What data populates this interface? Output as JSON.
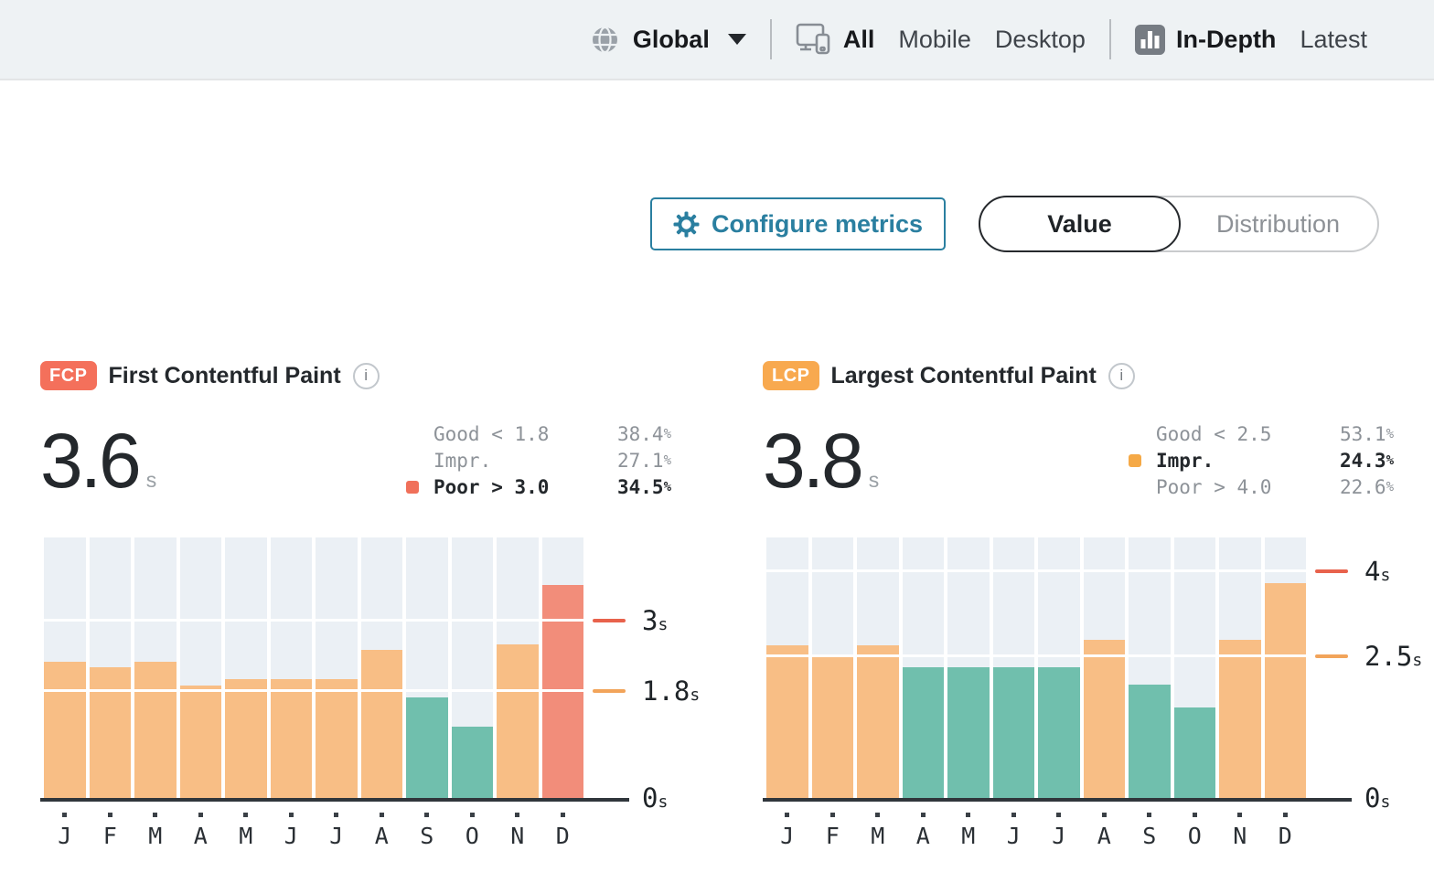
{
  "top_nav": {
    "region": {
      "label": "Global"
    },
    "device_tabs": [
      {
        "label": "All",
        "active": true
      },
      {
        "label": "Mobile",
        "active": false
      },
      {
        "label": "Desktop",
        "active": false
      }
    ],
    "view_tabs": [
      {
        "label": "In-Depth",
        "active": true
      },
      {
        "label": "Latest",
        "active": false
      }
    ]
  },
  "controls": {
    "configure_label": "Configure metrics",
    "toggle": [
      {
        "label": "Value",
        "active": true
      },
      {
        "label": "Distribution",
        "active": false
      }
    ]
  },
  "colors": {
    "accent": "#2a7fa0",
    "good": "#70bfad",
    "impr": "#f8be85",
    "poor": "#f28d7a",
    "impr_dash": "#f2a45a",
    "poor_dash": "#e8624c",
    "impr_marker": "#f5a947",
    "poor_marker": "#f0705a",
    "fcp_badge": "#f4705b",
    "lcp_badge": "#f8a94f",
    "plot_column_bg": "#ebf0f5",
    "axis": "#30363b"
  },
  "chart_data": [
    {
      "type": "bar",
      "badge": "FCP",
      "badge_color_key": "fcp_badge",
      "title": "First Contentful Paint",
      "info_icon": "i",
      "current_value": "3.6",
      "unit": "s",
      "legend": [
        {
          "label": "Good < 1.8",
          "value": "38.4",
          "unit": "%",
          "marker": null,
          "emphasis": false
        },
        {
          "label": "Impr.",
          "value": "27.1",
          "unit": "%",
          "marker": null,
          "emphasis": false
        },
        {
          "label": "Poor > 3.0",
          "value": "34.5",
          "unit": "%",
          "marker": "poor",
          "emphasis": true
        }
      ],
      "categories": [
        "J",
        "F",
        "M",
        "A",
        "M",
        "J",
        "J",
        "A",
        "S",
        "O",
        "N",
        "D"
      ],
      "values": [
        2.3,
        2.2,
        2.3,
        1.9,
        2.0,
        2.0,
        2.0,
        2.5,
        1.7,
        1.2,
        2.6,
        3.6
      ],
      "statuses": [
        "impr",
        "impr",
        "impr",
        "impr",
        "impr",
        "impr",
        "impr",
        "impr",
        "good",
        "good",
        "impr",
        "poor"
      ],
      "thresholds": [
        {
          "value": 1.8,
          "label": "1.8",
          "unit": "s",
          "color_key": "impr_dash"
        },
        {
          "value": 3.0,
          "label": "3",
          "unit": "s",
          "color_key": "poor_dash"
        }
      ],
      "zero_tick": {
        "label": "0",
        "unit": "s"
      },
      "ymax": 4.4,
      "xlabel": "",
      "ylabel": ""
    },
    {
      "type": "bar",
      "badge": "LCP",
      "badge_color_key": "lcp_badge",
      "title": "Largest Contentful Paint",
      "info_icon": "i",
      "current_value": "3.8",
      "unit": "s",
      "legend": [
        {
          "label": "Good < 2.5",
          "value": "53.1",
          "unit": "%",
          "marker": null,
          "emphasis": false
        },
        {
          "label": "Impr.",
          "value": "24.3",
          "unit": "%",
          "marker": "impr",
          "emphasis": true
        },
        {
          "label": "Poor > 4.0",
          "value": "22.6",
          "unit": "%",
          "marker": null,
          "emphasis": false
        }
      ],
      "categories": [
        "J",
        "F",
        "M",
        "A",
        "M",
        "J",
        "J",
        "A",
        "S",
        "O",
        "N",
        "D"
      ],
      "values": [
        2.7,
        2.5,
        2.7,
        2.3,
        2.3,
        2.3,
        2.3,
        2.8,
        2.0,
        1.6,
        2.8,
        3.8
      ],
      "statuses": [
        "impr",
        "impr",
        "impr",
        "good",
        "good",
        "good",
        "good",
        "impr",
        "good",
        "good",
        "impr",
        "impr"
      ],
      "thresholds": [
        {
          "value": 2.5,
          "label": "2.5",
          "unit": "s",
          "color_key": "impr_dash"
        },
        {
          "value": 4.0,
          "label": "4",
          "unit": "s",
          "color_key": "poor_dash"
        }
      ],
      "zero_tick": {
        "label": "0",
        "unit": "s"
      },
      "ymax": 4.6,
      "xlabel": "",
      "ylabel": ""
    }
  ]
}
